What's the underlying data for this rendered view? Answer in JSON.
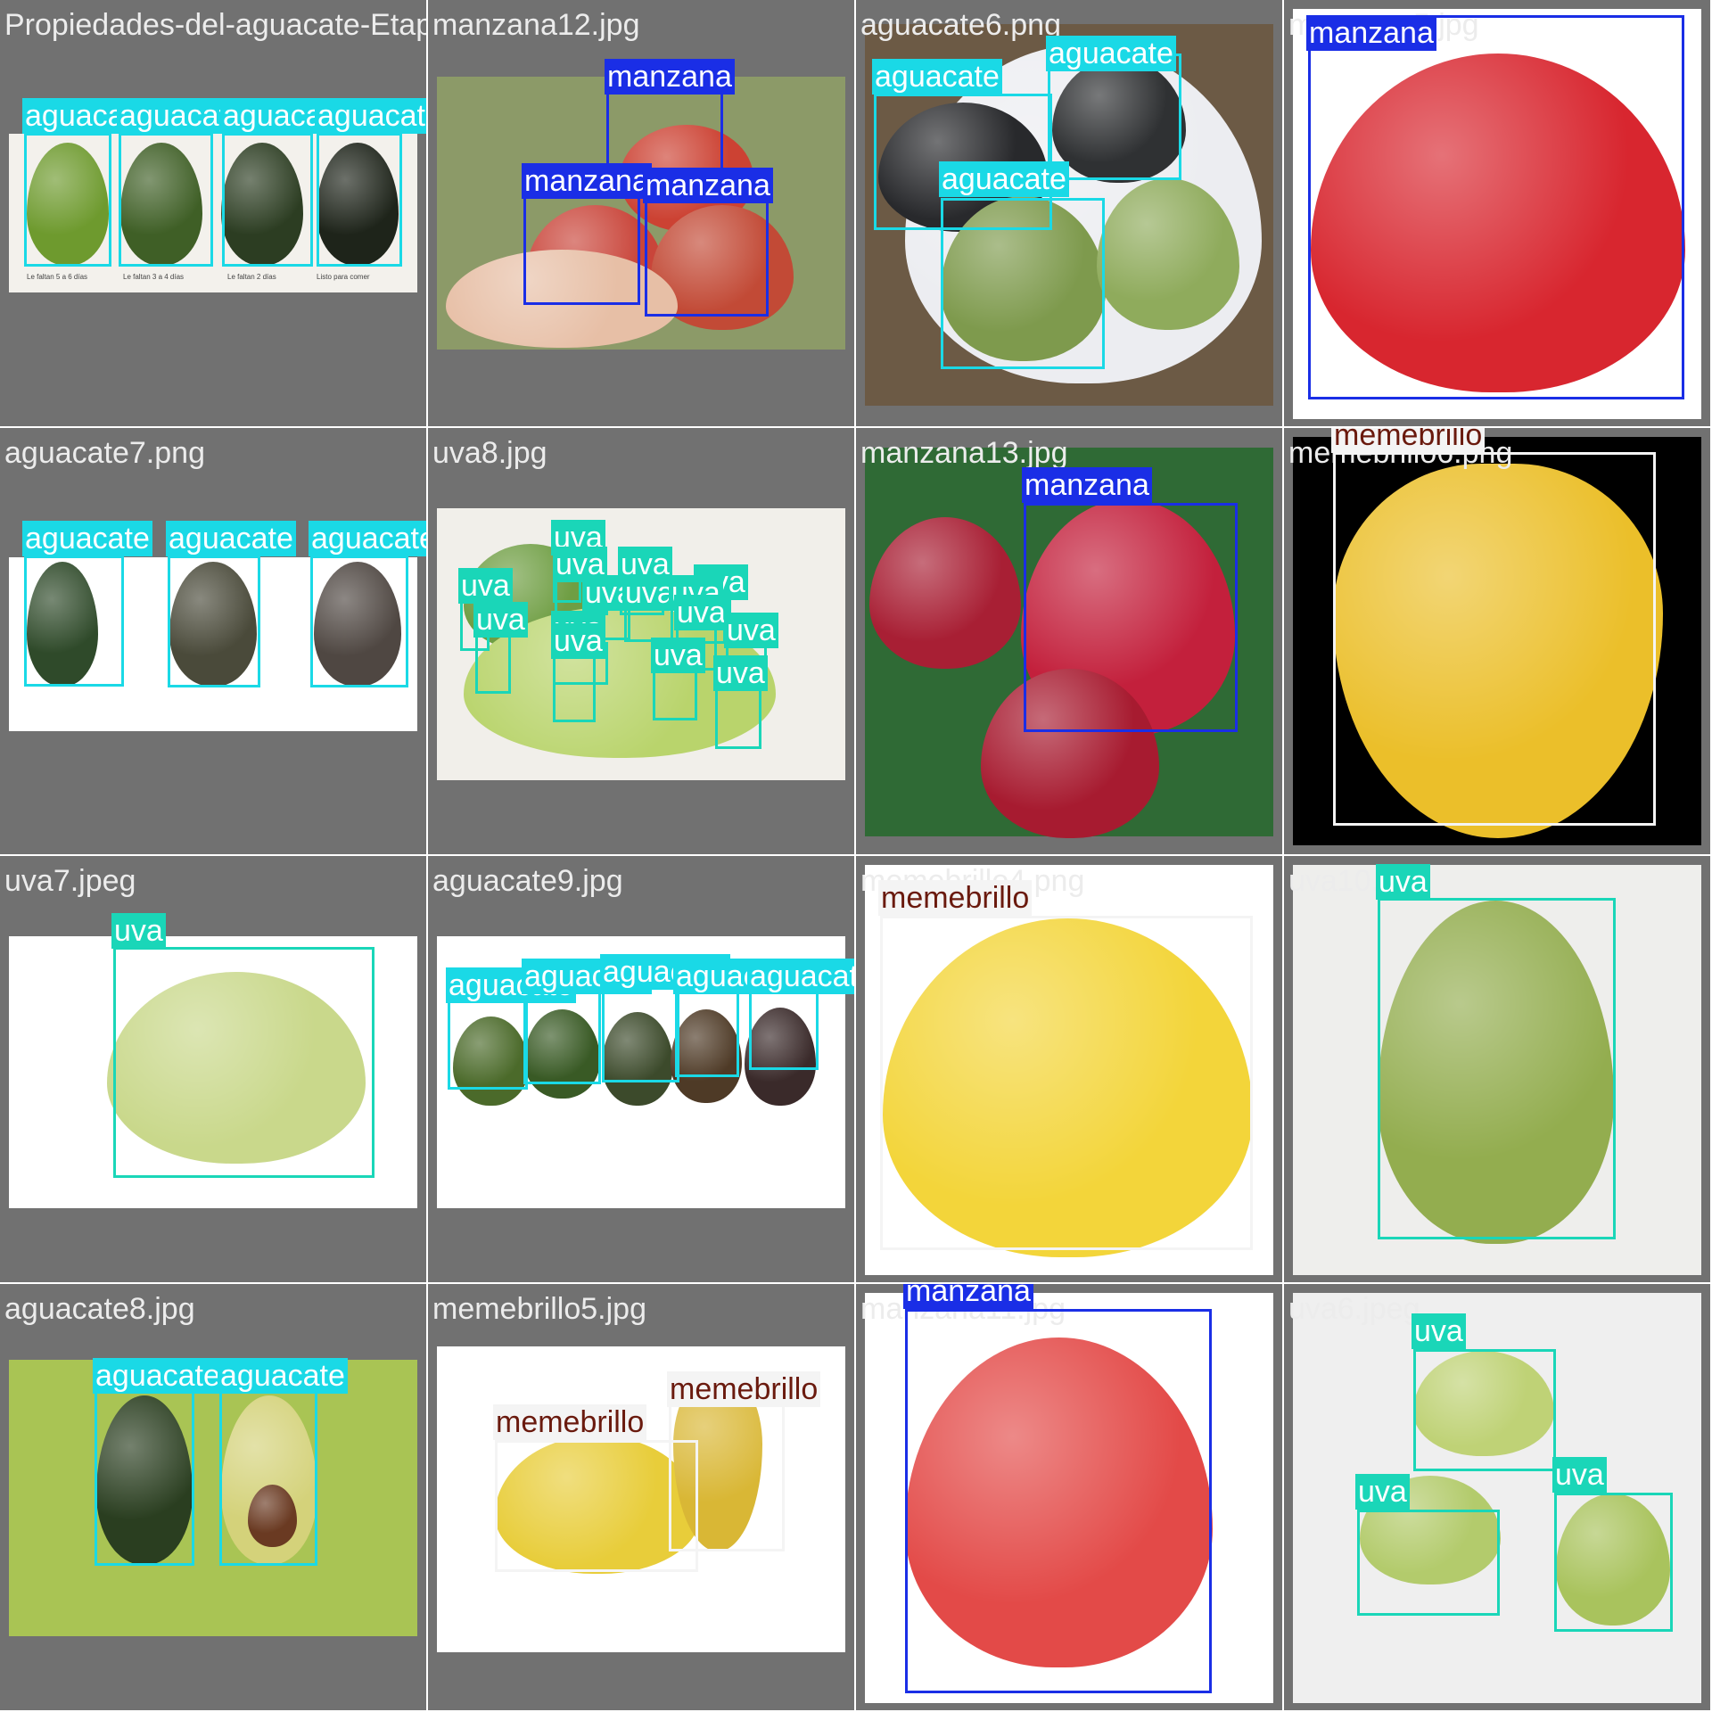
{
  "classes": {
    "aguacate": {
      "label": "aguacate",
      "color": "#1ad9e6"
    },
    "manzana": {
      "label": "manzana",
      "color": "#1a2ee6"
    },
    "uva": {
      "label": "uva",
      "color": "#1ad6b8"
    },
    "memebrillo": {
      "label": "memebrillo",
      "color": "#f4f4f4"
    }
  },
  "tiles": [
    {
      "filename": "Propiedades-del-aguacate-Etapas-Madurez.jpg",
      "detections": [
        {
          "cls": "aguacate",
          "label": "aguacate"
        },
        {
          "cls": "aguacate",
          "label": "aguacate"
        },
        {
          "cls": "aguacate",
          "label": "aguacate"
        },
        {
          "cls": "aguacate",
          "label": "aguacate"
        }
      ],
      "photo_text": [
        "Le faltan 5 a 6 días",
        "Le faltan 3 a 4 días",
        "Le faltan 2 días",
        "Listo para comer"
      ]
    },
    {
      "filename": "manzana12.jpg",
      "detections": [
        {
          "cls": "manzana",
          "label": "manzana"
        },
        {
          "cls": "manzana",
          "label": "manzana"
        },
        {
          "cls": "manzana",
          "label": "manzana"
        }
      ]
    },
    {
      "filename": "aguacate6.png",
      "detections": [
        {
          "cls": "aguacate",
          "label": "aguacate"
        },
        {
          "cls": "aguacate",
          "label": "aguacate"
        },
        {
          "cls": "aguacate",
          "label": "aguacate"
        }
      ]
    },
    {
      "filename": "manzana5.jpg",
      "detections": [
        {
          "cls": "manzana",
          "label": "manzana"
        }
      ]
    },
    {
      "filename": "aguacate7.png",
      "detections": [
        {
          "cls": "aguacate",
          "label": "aguacate"
        },
        {
          "cls": "aguacate",
          "label": "aguacate"
        },
        {
          "cls": "aguacate",
          "label": "aguacate"
        }
      ]
    },
    {
      "filename": "uva8.jpg",
      "detections": [
        {
          "cls": "uva",
          "label": "uva"
        },
        {
          "cls": "uva",
          "label": "uva"
        },
        {
          "cls": "uva",
          "label": "uva"
        },
        {
          "cls": "uva",
          "label": "uva"
        },
        {
          "cls": "uva",
          "label": "uva"
        },
        {
          "cls": "uva",
          "label": "uva"
        },
        {
          "cls": "uva",
          "label": "uva"
        },
        {
          "cls": "uva",
          "label": "uva"
        },
        {
          "cls": "uva",
          "label": "uva"
        },
        {
          "cls": "uva",
          "label": "uva"
        },
        {
          "cls": "uva",
          "label": "uva"
        },
        {
          "cls": "uva",
          "label": "uva"
        },
        {
          "cls": "uva",
          "label": "uva"
        },
        {
          "cls": "uva",
          "label": "uva"
        },
        {
          "cls": "uva",
          "label": "uva"
        }
      ]
    },
    {
      "filename": "manzana13.jpg",
      "detections": [
        {
          "cls": "manzana",
          "label": "manzana"
        }
      ]
    },
    {
      "filename": "memebrillo6.png",
      "detections": [
        {
          "cls": "memebrillo",
          "label": "memebrillo"
        }
      ]
    },
    {
      "filename": "uva7.jpeg",
      "detections": [
        {
          "cls": "uva",
          "label": "uva"
        }
      ]
    },
    {
      "filename": "aguacate9.jpg",
      "detections": [
        {
          "cls": "aguacate",
          "label": "aguacate"
        },
        {
          "cls": "aguacate",
          "label": "aguacate"
        },
        {
          "cls": "aguacate",
          "label": "aguacate"
        },
        {
          "cls": "aguacate",
          "label": "aguacate"
        },
        {
          "cls": "aguacate",
          "label": "aguacate"
        }
      ]
    },
    {
      "filename": "memebrillo4.png",
      "detections": [
        {
          "cls": "memebrillo",
          "label": "memebrillo"
        }
      ]
    },
    {
      "filename": "uva10.jpg",
      "detections": [
        {
          "cls": "uva",
          "label": "uva"
        }
      ]
    },
    {
      "filename": "aguacate8.jpg",
      "detections": [
        {
          "cls": "aguacate",
          "label": "aguacate"
        },
        {
          "cls": "aguacate",
          "label": "aguacate"
        }
      ]
    },
    {
      "filename": "memebrillo5.jpg",
      "detections": [
        {
          "cls": "memebrillo",
          "label": "memebrillo"
        },
        {
          "cls": "memebrillo",
          "label": "memebrillo"
        }
      ]
    },
    {
      "filename": "manzana11.jpg",
      "detections": [
        {
          "cls": "manzana",
          "label": "manzana"
        }
      ]
    },
    {
      "filename": "uva6.jpeg",
      "detections": [
        {
          "cls": "uva",
          "label": "uva"
        },
        {
          "cls": "uva",
          "label": "uva"
        },
        {
          "cls": "uva",
          "label": "uva"
        }
      ]
    }
  ]
}
